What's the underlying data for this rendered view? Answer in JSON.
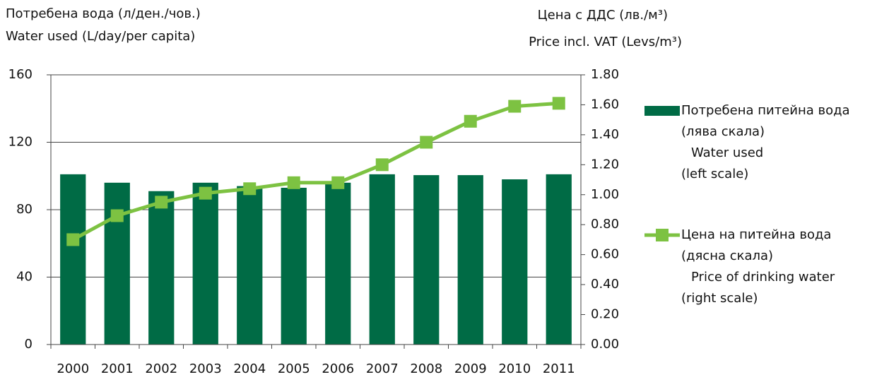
{
  "chart_data": {
    "type": "bar_line",
    "y_title": [
      "Потребена вода (л/ден./чов.)",
      "Water used (L/day/per capita)"
    ],
    "y2_title": [
      "Цена с ДДС (лв./м³)",
      "Price incl. VAT (Levs/m³)"
    ],
    "categories": [
      "2000",
      "2001",
      "2002",
      "2003",
      "2004",
      "2005",
      "2006",
      "2007",
      "2008",
      "2009",
      "2010",
      "2011"
    ],
    "series": [
      {
        "name": "Потребена питейна вода",
        "legend_note": [
          "(лява скала)",
          "Water used",
          "(left scale)"
        ],
        "kind": "bar",
        "color": "#006b45",
        "values": [
          101,
          96,
          91,
          96,
          94,
          93,
          96,
          101,
          100.5,
          100.5,
          98,
          101
        ]
      },
      {
        "name": "Цена на питейна вода",
        "legend_note": [
          "(дясна скала)",
          "Price of drinking water",
          "(right scale)"
        ],
        "kind": "line",
        "axis": "y2",
        "color": "#7dc242",
        "values": [
          0.7,
          0.86,
          0.95,
          1.01,
          1.04,
          1.08,
          1.08,
          1.2,
          1.35,
          1.49,
          1.59,
          1.61
        ]
      }
    ],
    "ylim": [
      0,
      160
    ],
    "yticks": [
      0,
      40,
      80,
      120,
      160
    ],
    "y2lim": [
      0,
      1.8
    ],
    "y2ticks": [
      {
        "value": 0,
        "label": "0.00"
      },
      {
        "value": 0.2,
        "label": "0.20"
      },
      {
        "value": 0.4,
        "label": "0.40"
      },
      {
        "value": 0.6,
        "label": "0.60"
      },
      {
        "value": 0.8,
        "label": "0.80"
      },
      {
        "value": 1.0,
        "label": "1.00"
      },
      {
        "value": 1.2,
        "label": "1.20"
      },
      {
        "value": 1.4,
        "label": "1.40"
      },
      {
        "value": 1.6,
        "label": "1.60"
      },
      {
        "value": 1.8,
        "label": "1.80"
      }
    ],
    "grid": true,
    "legend": "right"
  }
}
